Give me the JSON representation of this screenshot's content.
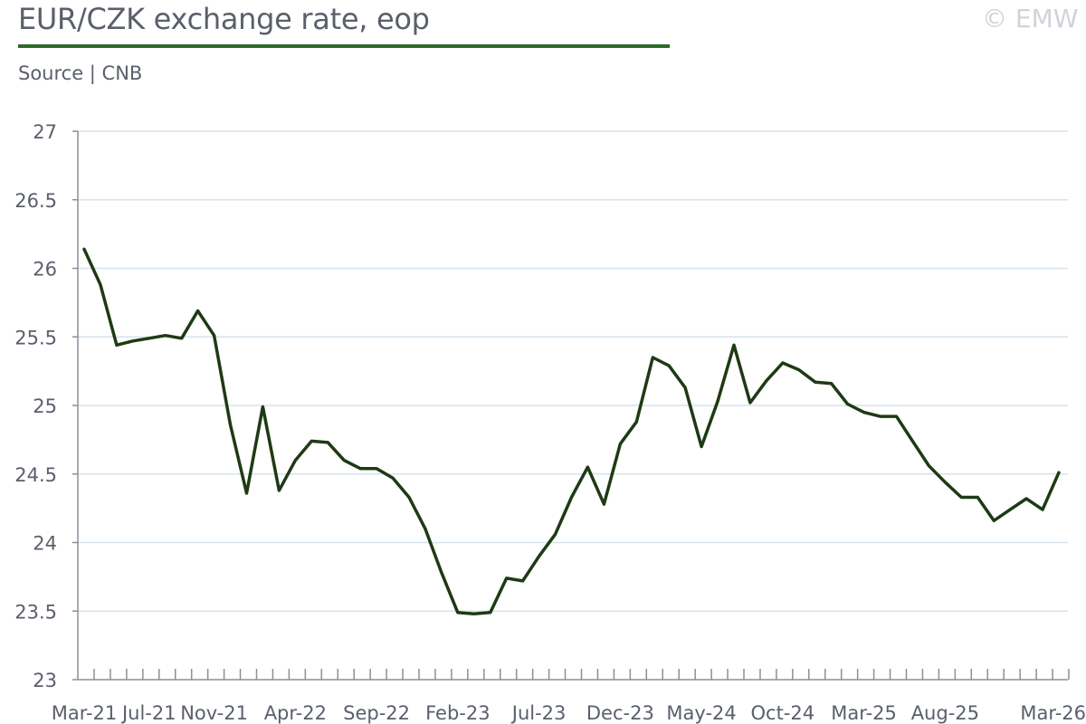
{
  "header": {
    "title": "EUR/CZK exchange rate, eop",
    "source": "Source | CNB",
    "copyright": "© EMW"
  },
  "colors": {
    "line": "#1e3a14",
    "title_rule": "#2d6a2a",
    "grid": "#d6e3ee",
    "axis": "#8a8f99"
  },
  "chart_data": {
    "type": "line",
    "title": "EUR/CZK exchange rate, eop",
    "xlabel": "",
    "ylabel": "",
    "ylim": [
      23,
      27
    ],
    "yticks": [
      23,
      23.5,
      24,
      24.5,
      25,
      25.5,
      26,
      26.5,
      27
    ],
    "ytick_labels": [
      "23",
      "23.5",
      "24",
      "24.5",
      "25",
      "25.5",
      "26",
      "26.5",
      "27"
    ],
    "grid": true,
    "x_tick_labels": [
      "Mar-21",
      "Jul-21",
      "Nov-21",
      "Apr-22",
      "Sep-22",
      "Feb-23",
      "Jul-23",
      "Dec-23",
      "May-24",
      "Oct-24",
      "Mar-25",
      "Aug-25",
      "Mar-26"
    ],
    "x_tick_label_index": [
      0,
      4,
      8,
      13,
      18,
      23,
      28,
      33,
      38,
      43,
      48,
      53,
      60
    ],
    "series": [
      {
        "x": [
          "Mar-21",
          "Apr-21",
          "May-21",
          "Jun-21",
          "Jul-21",
          "Aug-21",
          "Sep-21",
          "Oct-21",
          "Nov-21",
          "Dec-21",
          "Jan-22",
          "Feb-22",
          "Mar-22",
          "Apr-22",
          "May-22",
          "Jun-22",
          "Jul-22",
          "Aug-22",
          "Sep-22",
          "Oct-22",
          "Nov-22",
          "Dec-22",
          "Jan-23",
          "Feb-23",
          "Mar-23",
          "Apr-23",
          "May-23",
          "Jun-23",
          "Jul-23",
          "Aug-23",
          "Sep-23",
          "Oct-23",
          "Nov-23",
          "Dec-23",
          "Jan-24",
          "Feb-24",
          "Mar-24",
          "Apr-24",
          "May-24",
          "Jun-24",
          "Jul-24",
          "Aug-24",
          "Sep-24",
          "Oct-24",
          "Nov-24",
          "Dec-24",
          "Jan-25",
          "Feb-25",
          "Mar-25",
          "Apr-25",
          "May-25",
          "Jun-25",
          "Jul-25",
          "Aug-25",
          "Sep-25",
          "Oct-25",
          "Nov-25",
          "Dec-25",
          "Jan-26",
          "Feb-26",
          "Mar-26"
        ],
        "values": [
          26.14,
          25.88,
          25.44,
          25.47,
          25.49,
          25.51,
          25.49,
          25.69,
          25.51,
          24.86,
          24.36,
          24.99,
          24.38,
          24.6,
          24.74,
          24.73,
          24.6,
          24.54,
          24.54,
          24.47,
          24.33,
          24.1,
          23.78,
          23.49,
          23.48,
          23.49,
          23.74,
          23.72,
          23.9,
          24.06,
          24.33,
          24.55,
          24.28,
          24.72,
          24.88,
          25.35,
          25.29,
          25.13,
          24.7,
          25.03,
          25.44,
          25.02,
          25.18,
          25.31,
          25.26,
          25.17,
          25.16,
          25.01,
          24.95,
          24.92,
          24.92,
          24.74,
          24.56,
          24.44,
          24.33,
          24.33,
          24.16,
          24.24,
          24.32,
          24.24,
          24.51
        ]
      }
    ]
  }
}
